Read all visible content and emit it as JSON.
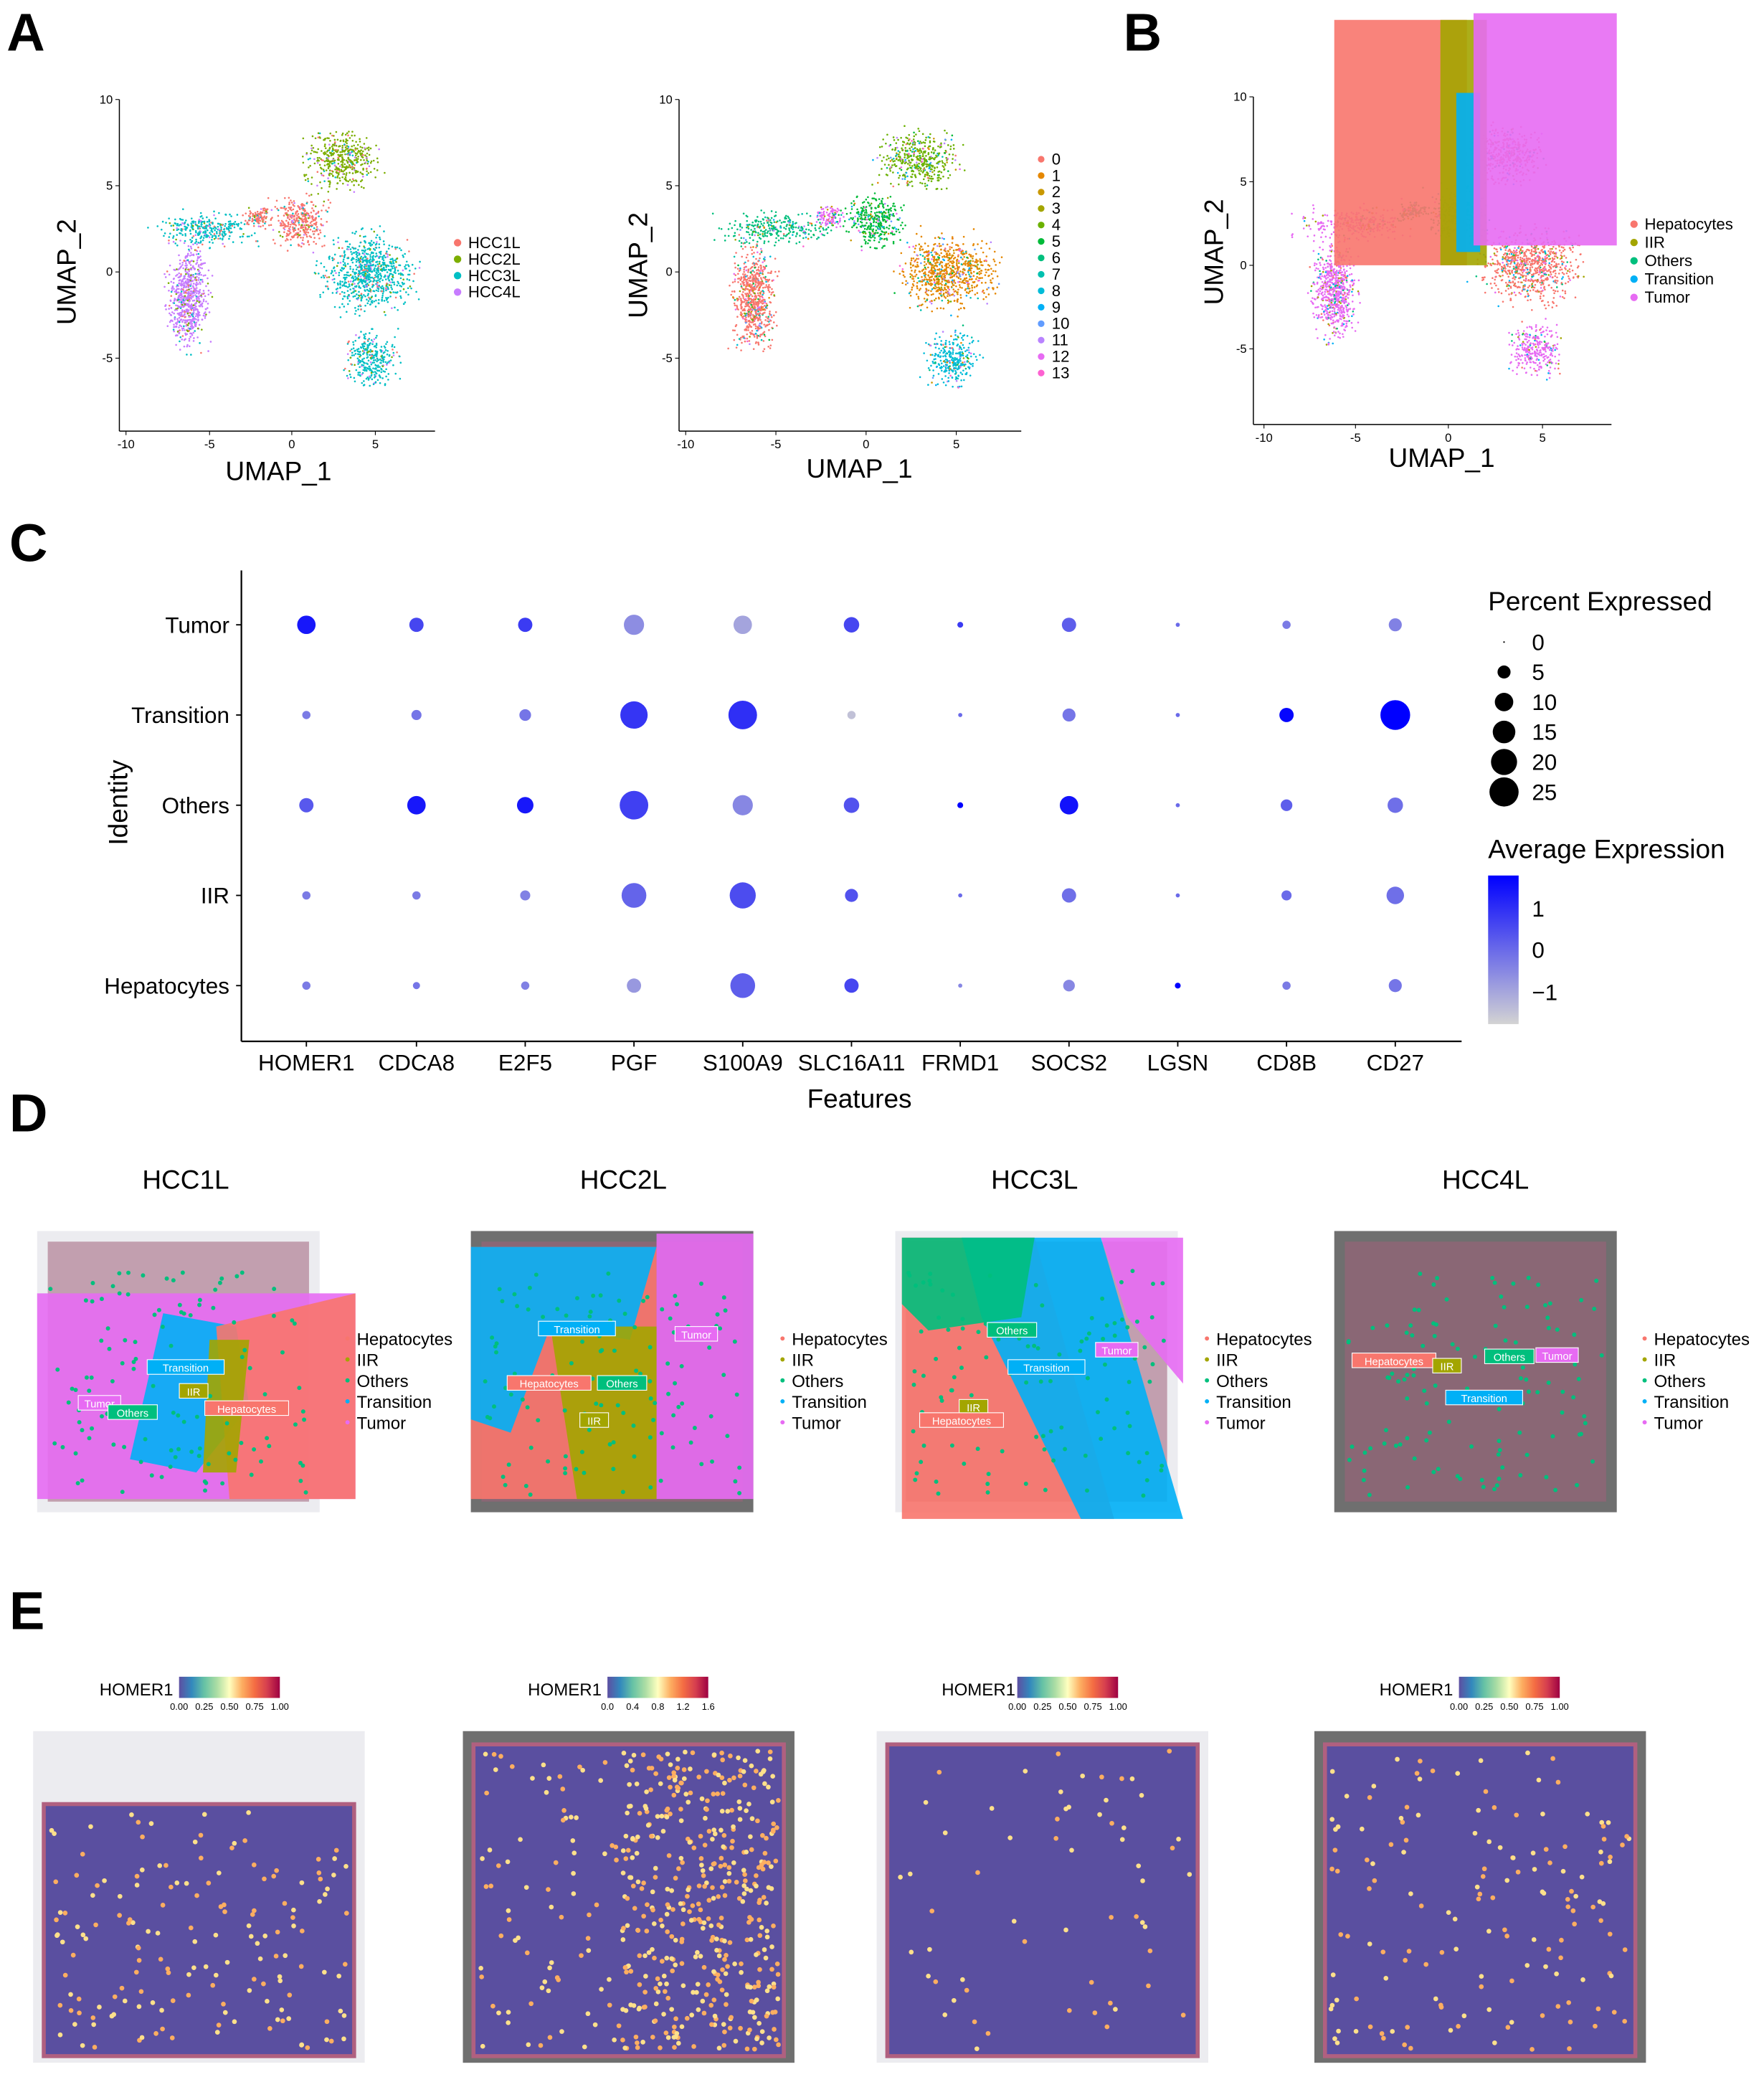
{
  "panel_labels": [
    "A",
    "B",
    "C",
    "D",
    "E"
  ],
  "chart_data": [
    {
      "type": "scatter",
      "panel": "A",
      "xlabel": "UMAP_1",
      "ylabel": "UMAP_2",
      "xticks": [
        -10,
        -5,
        0,
        5
      ],
      "yticks": [
        10,
        5,
        0,
        -5
      ],
      "legend": [
        "HCC1L",
        "HCC2L",
        "HCC3L",
        "HCC4L"
      ],
      "colors": [
        "#F8766D",
        "#7CAE00",
        "#00BFC4",
        "#C77CFF"
      ],
      "legend_position": "right"
    },
    {
      "type": "scatter",
      "panel": "A",
      "xlabel": "UMAP_1",
      "ylabel": "UMAP_2",
      "xticks": [
        -10,
        -5,
        0,
        5
      ],
      "yticks": [
        10,
        5,
        0,
        -5
      ],
      "legend": [
        "0",
        "1",
        "2",
        "3",
        "4",
        "5",
        "6",
        "7",
        "8",
        "9",
        "10",
        "11",
        "12",
        "13"
      ],
      "colors": [
        "#F8766D",
        "#E58700",
        "#C99800",
        "#A3A500",
        "#6BB100",
        "#00BA38",
        "#00BF7D",
        "#00C0AF",
        "#00BCD8",
        "#00B0F6",
        "#619CFF",
        "#B983FF",
        "#E76BF3",
        "#FD61D1"
      ],
      "legend_position": "right"
    },
    {
      "type": "scatter",
      "panel": "B",
      "xlabel": "UMAP_1",
      "ylabel": "UMAP_2",
      "xticks": [
        -10,
        -5,
        0,
        5
      ],
      "yticks": [
        10,
        5,
        0,
        -5
      ],
      "legend": [
        "Hepatocytes",
        "IIR",
        "Others",
        "Transition",
        "Tumor"
      ],
      "colors": [
        "#F8766D",
        "#A3A500",
        "#00BF7D",
        "#00B0F6",
        "#E76BF3"
      ],
      "legend_position": "right"
    },
    {
      "type": "dotplot",
      "panel": "C",
      "xlabel": "Features",
      "ylabel": "Identity",
      "features": [
        "HOMER1",
        "CDCA8",
        "E2F5",
        "PGF",
        "S100A9",
        "SLC16A11",
        "FRMD1",
        "SOCS2",
        "LGSN",
        "CD8B",
        "CD27"
      ],
      "identities": [
        "Tumor",
        "Transition",
        "Others",
        "IIR",
        "Hepatocytes"
      ],
      "percent_expressed": [
        [
          10,
          6,
          6,
          12,
          10,
          7,
          1,
          6,
          0.5,
          2,
          5
        ],
        [
          2,
          3,
          4,
          22,
          24,
          2,
          0.5,
          5,
          0.5,
          6,
          26
        ],
        [
          6,
          10,
          8,
          24,
          12,
          7,
          1,
          10,
          0.5,
          4,
          7
        ],
        [
          2,
          2,
          3,
          18,
          20,
          5,
          0.5,
          6,
          0.5,
          3,
          9
        ],
        [
          2,
          1.5,
          2,
          6,
          18,
          6,
          0.5,
          4,
          1,
          2,
          5
        ]
      ],
      "average_expression": [
        [
          1.4,
          0.6,
          0.8,
          -0.6,
          -1.0,
          0.6,
          0.8,
          0.2,
          0,
          -0.3,
          -0.4
        ],
        [
          -0.3,
          -0.2,
          -0.2,
          0.9,
          1.0,
          -1.5,
          0,
          -0.2,
          0,
          1.7,
          2.0
        ],
        [
          0.3,
          1.4,
          1.4,
          0.7,
          -0.5,
          0.4,
          1.8,
          1.5,
          0,
          0.2,
          -0.1
        ],
        [
          -0.3,
          -0.3,
          -0.4,
          0.1,
          0.5,
          0.4,
          0,
          -0.1,
          0,
          0,
          -0.1
        ],
        [
          -0.3,
          -0.2,
          -0.4,
          -0.8,
          0.2,
          0.6,
          -0.5,
          -0.5,
          2.0,
          -0.3,
          -0.2
        ]
      ],
      "size_legend": {
        "title": "Percent Expressed",
        "values": [
          "0",
          "5",
          "10",
          "15",
          "20",
          "25"
        ]
      },
      "color_legend": {
        "title": "Average Expression",
        "ticks": [
          "1",
          "0",
          "−1"
        ],
        "low": "#D3D3D3",
        "high": "#0000FF"
      }
    }
  ],
  "panel_d": {
    "samples": [
      "HCC1L",
      "HCC2L",
      "HCC3L",
      "HCC4L"
    ],
    "legend": [
      "Hepatocytes",
      "IIR",
      "Others",
      "Transition",
      "Tumor"
    ],
    "colors": [
      "#F8766D",
      "#A3A500",
      "#00BF7D",
      "#00B0F6",
      "#E76BF3"
    ],
    "region_labels": [
      [
        "Transition",
        "IIR",
        "Tumor",
        "Others",
        "Hepatocytes"
      ],
      [
        "Transition",
        "Tumor",
        "Hepatocytes",
        "Others",
        "IIR"
      ],
      [
        "Others",
        "Tumor",
        "Transition",
        "IIR",
        "Hepatocytes"
      ],
      [
        "Hepatocytes",
        "IIR",
        "Others",
        "Tumor",
        "Transition"
      ]
    ]
  },
  "panel_e": {
    "feature": "HOMER1",
    "colorbar_ticks": [
      [
        "0.00",
        "0.25",
        "0.50",
        "0.75",
        "1.00"
      ],
      [
        "0.0",
        "0.4",
        "0.8",
        "1.2",
        "1.6"
      ],
      [
        "0.00",
        "0.25",
        "0.50",
        "0.75",
        "1.00"
      ],
      [
        "0.00",
        "0.25",
        "0.50",
        "0.75",
        "1.00"
      ]
    ]
  }
}
